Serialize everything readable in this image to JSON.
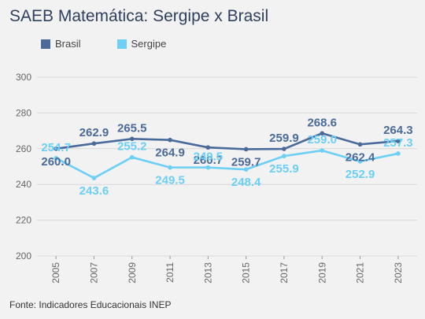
{
  "title": "SAEB Matemática: Sergipe x Brasil",
  "source": "Fonte: Indicadores Educacionais INEP",
  "colors": {
    "brasil": "#4a6a9a",
    "sergipe": "#6ccff6",
    "grid": "#d8d8d8"
  },
  "chart_data": {
    "type": "line",
    "title": "SAEB Matemática: Sergipe x Brasil",
    "x": [
      "2005",
      "2007",
      "2009",
      "2011",
      "2013",
      "2015",
      "2017",
      "2019",
      "2021",
      "2023"
    ],
    "series": [
      {
        "name": "Brasil",
        "values": [
          260.0,
          262.9,
          265.5,
          264.9,
          260.7,
          259.7,
          259.9,
          268.6,
          262.4,
          264.3
        ]
      },
      {
        "name": "Sergipe",
        "values": [
          254.7,
          243.6,
          255.2,
          249.5,
          249.5,
          248.4,
          255.9,
          259.0,
          252.9,
          257.3
        ]
      }
    ],
    "yticks": [
      200,
      220,
      240,
      260,
      280,
      300
    ],
    "ylim": [
      200,
      300
    ],
    "grid": true,
    "legend": "top-left"
  }
}
